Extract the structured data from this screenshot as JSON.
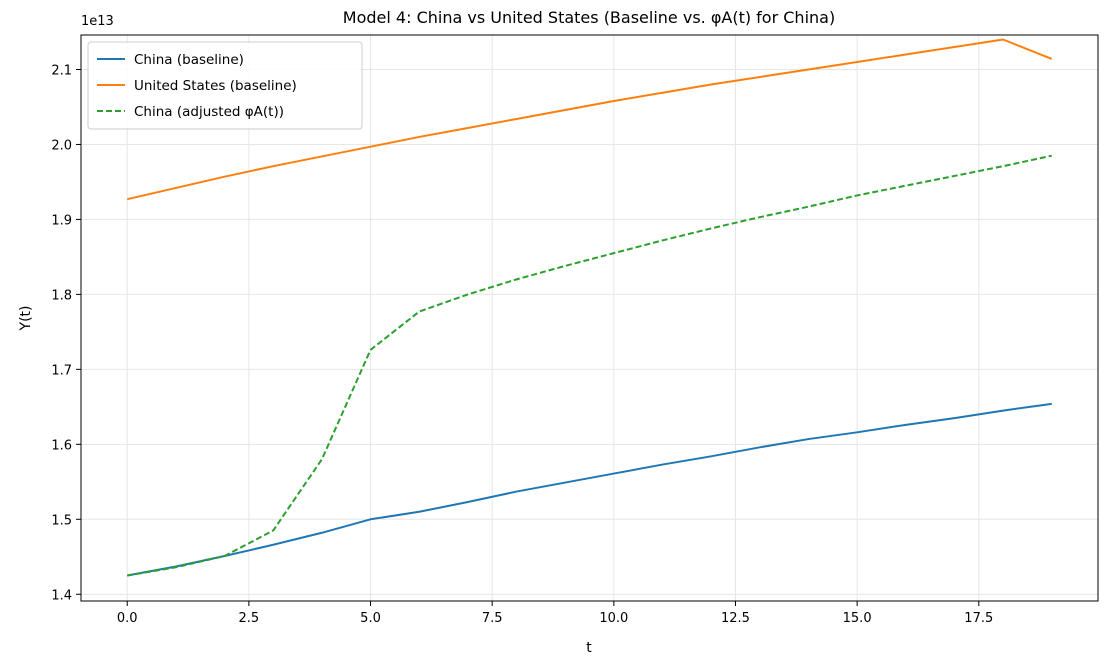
{
  "chart_data": {
    "type": "line",
    "title": "Model 4: China vs United States (Baseline vs. φA(t) for China)",
    "xlabel": "t",
    "ylabel": "Y(t)",
    "y_offset_label": "1e13",
    "xlim": [
      -0.95,
      19.95
    ],
    "ylim": [
      1.391,
      2.146
    ],
    "xticks": [
      0.0,
      2.5,
      5.0,
      7.5,
      10.0,
      12.5,
      15.0,
      17.5
    ],
    "xtick_labels": [
      "0.0",
      "2.5",
      "5.0",
      "7.5",
      "10.0",
      "12.5",
      "15.0",
      "17.5"
    ],
    "yticks": [
      1.4,
      1.5,
      1.6,
      1.7,
      1.8,
      1.9,
      2.0,
      2.1
    ],
    "ytick_labels": [
      "1.4",
      "1.5",
      "1.6",
      "1.7",
      "1.8",
      "1.9",
      "2.0",
      "2.1"
    ],
    "grid": true,
    "legend_position": "top-left",
    "x": [
      0,
      1,
      2,
      3,
      4,
      5,
      6,
      7,
      8,
      9,
      10,
      11,
      12,
      13,
      14,
      15,
      16,
      17,
      18,
      19
    ],
    "series": [
      {
        "name": "China (baseline)",
        "color": "#1f77b4",
        "dash": "solid",
        "values": [
          1.425,
          1.437,
          1.451,
          1.466,
          1.482,
          1.5,
          1.51,
          1.523,
          1.537,
          1.549,
          1.561,
          1.573,
          1.584,
          1.596,
          1.607,
          1.616,
          1.626,
          1.635,
          1.645,
          1.654
        ]
      },
      {
        "name": "United States (baseline)",
        "color": "#ff7f0e",
        "dash": "solid",
        "values": [
          1.927,
          1.942,
          1.957,
          1.971,
          1.984,
          1.997,
          2.01,
          2.022,
          2.034,
          2.046,
          2.058,
          2.069,
          2.08,
          2.09,
          2.1,
          2.11,
          2.12,
          2.13,
          2.14,
          2.114
        ]
      },
      {
        "name": "China (adjusted φA(t))",
        "color": "#2ca02c",
        "dash": "dashed",
        "values": [
          1.425,
          1.436,
          1.451,
          1.485,
          1.58,
          1.726,
          1.777,
          1.8,
          1.82,
          1.838,
          1.855,
          1.872,
          1.888,
          1.903,
          1.917,
          1.932,
          1.945,
          1.958,
          1.971,
          1.985
        ]
      }
    ]
  }
}
